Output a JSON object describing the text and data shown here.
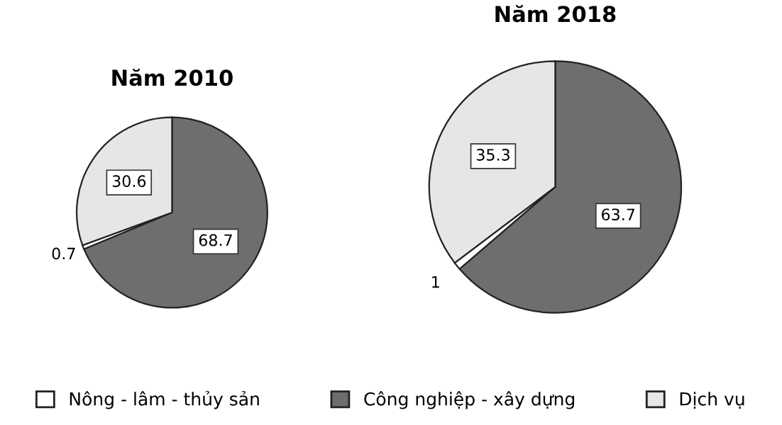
{
  "chart_data": [
    {
      "type": "pie",
      "title": "Năm 2010",
      "categories": [
        "Nông - lâm - thủy sản",
        "Công nghiệp - xây dựng",
        "Dịch vụ"
      ],
      "values": [
        0.7,
        68.7,
        30.6
      ],
      "colors": [
        "#ffffff",
        "#6e6e6e",
        "#e6e6e6"
      ],
      "data_labels": true,
      "legend": "bottom"
    },
    {
      "type": "pie",
      "title": "Năm 2018",
      "values": [
        1,
        63.7,
        35.3
      ],
      "colors": [
        "#ffffff",
        "#6e6e6e",
        "#e6e6e6"
      ],
      "data_labels": true
    }
  ]
}
